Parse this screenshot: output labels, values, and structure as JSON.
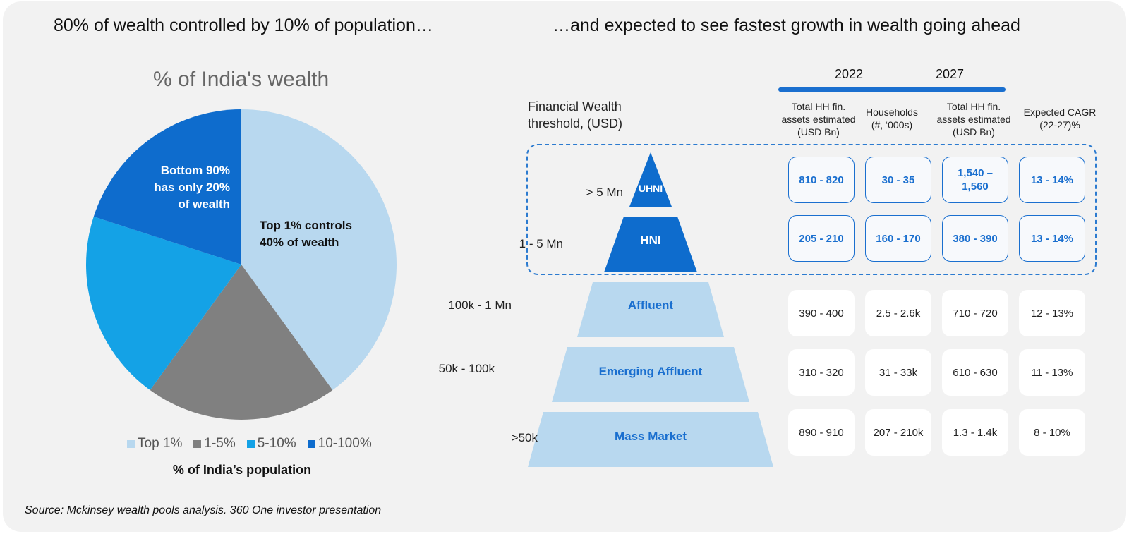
{
  "left_heading": "80% of wealth controlled by 10% of population…",
  "right_heading": "…and expected to see fastest growth in wealth going ahead",
  "source": "Source: Mckinsey wealth pools analysis. 360 One investor presentation",
  "colors": {
    "top1": "#b8d8ef",
    "p1_5": "#808080",
    "p5_10": "#14a2e6",
    "p10_100": "#0e6ccd",
    "accent": "#1a6fcf",
    "panel": "#f2f2f2"
  },
  "chart_data": [
    {
      "type": "pie",
      "title": "% of India's wealth",
      "xlabel": "% of India’s population",
      "categories": [
        "Top 1%",
        "1-5%",
        "5-10%",
        "10-100%"
      ],
      "values": [
        40,
        20,
        20,
        20
      ],
      "annotations": {
        "top": "Top 1% controls 40% of wealth",
        "bottom_lines": [
          "Bottom 90%",
          "has only 20%",
          "of wealth"
        ],
        "top_lines": [
          "Top 1% controls",
          "40% of wealth"
        ]
      },
      "legend_position": "bottom"
    },
    {
      "type": "table",
      "row_header": [
        "Financial Wealth",
        "threshold, (USD)"
      ],
      "years": [
        "2022",
        "2027"
      ],
      "columns": [
        [
          "Total HH fin.",
          "assets estimated",
          "(USD Bn)"
        ],
        [
          "Households",
          "(#, ‘000s)"
        ],
        [
          "Total HH fin.",
          "assets estimated",
          "(USD Bn)"
        ],
        [
          "Expected CAGR",
          "(22-27)%"
        ]
      ],
      "rows": [
        {
          "threshold": "> 5 Mn",
          "segment": "UHNI",
          "highlight": true,
          "values": [
            "810 - 820",
            "30 - 35",
            "1,540 – 1,560",
            "13 - 14%"
          ]
        },
        {
          "threshold": "1 - 5 Mn",
          "segment": "HNI",
          "highlight": true,
          "values": [
            "205 - 210",
            "160 - 170",
            "380 - 390",
            "13 - 14%"
          ]
        },
        {
          "threshold": "100k - 1 Mn",
          "segment": "Affluent",
          "highlight": false,
          "values": [
            "390 - 400",
            "2.5 - 2.6k",
            "710 - 720",
            "12 - 13%"
          ]
        },
        {
          "threshold": "50k - 100k",
          "segment": "Emerging Affluent",
          "highlight": false,
          "values": [
            "310 - 320",
            "31 - 33k",
            "610 - 630",
            "11 - 13%"
          ]
        },
        {
          "threshold": ">50k",
          "segment": "Mass Market",
          "highlight": false,
          "values": [
            "890 - 910",
            "207 - 210k",
            "1.3 - 1.4k",
            "8 - 10%"
          ]
        }
      ]
    }
  ]
}
